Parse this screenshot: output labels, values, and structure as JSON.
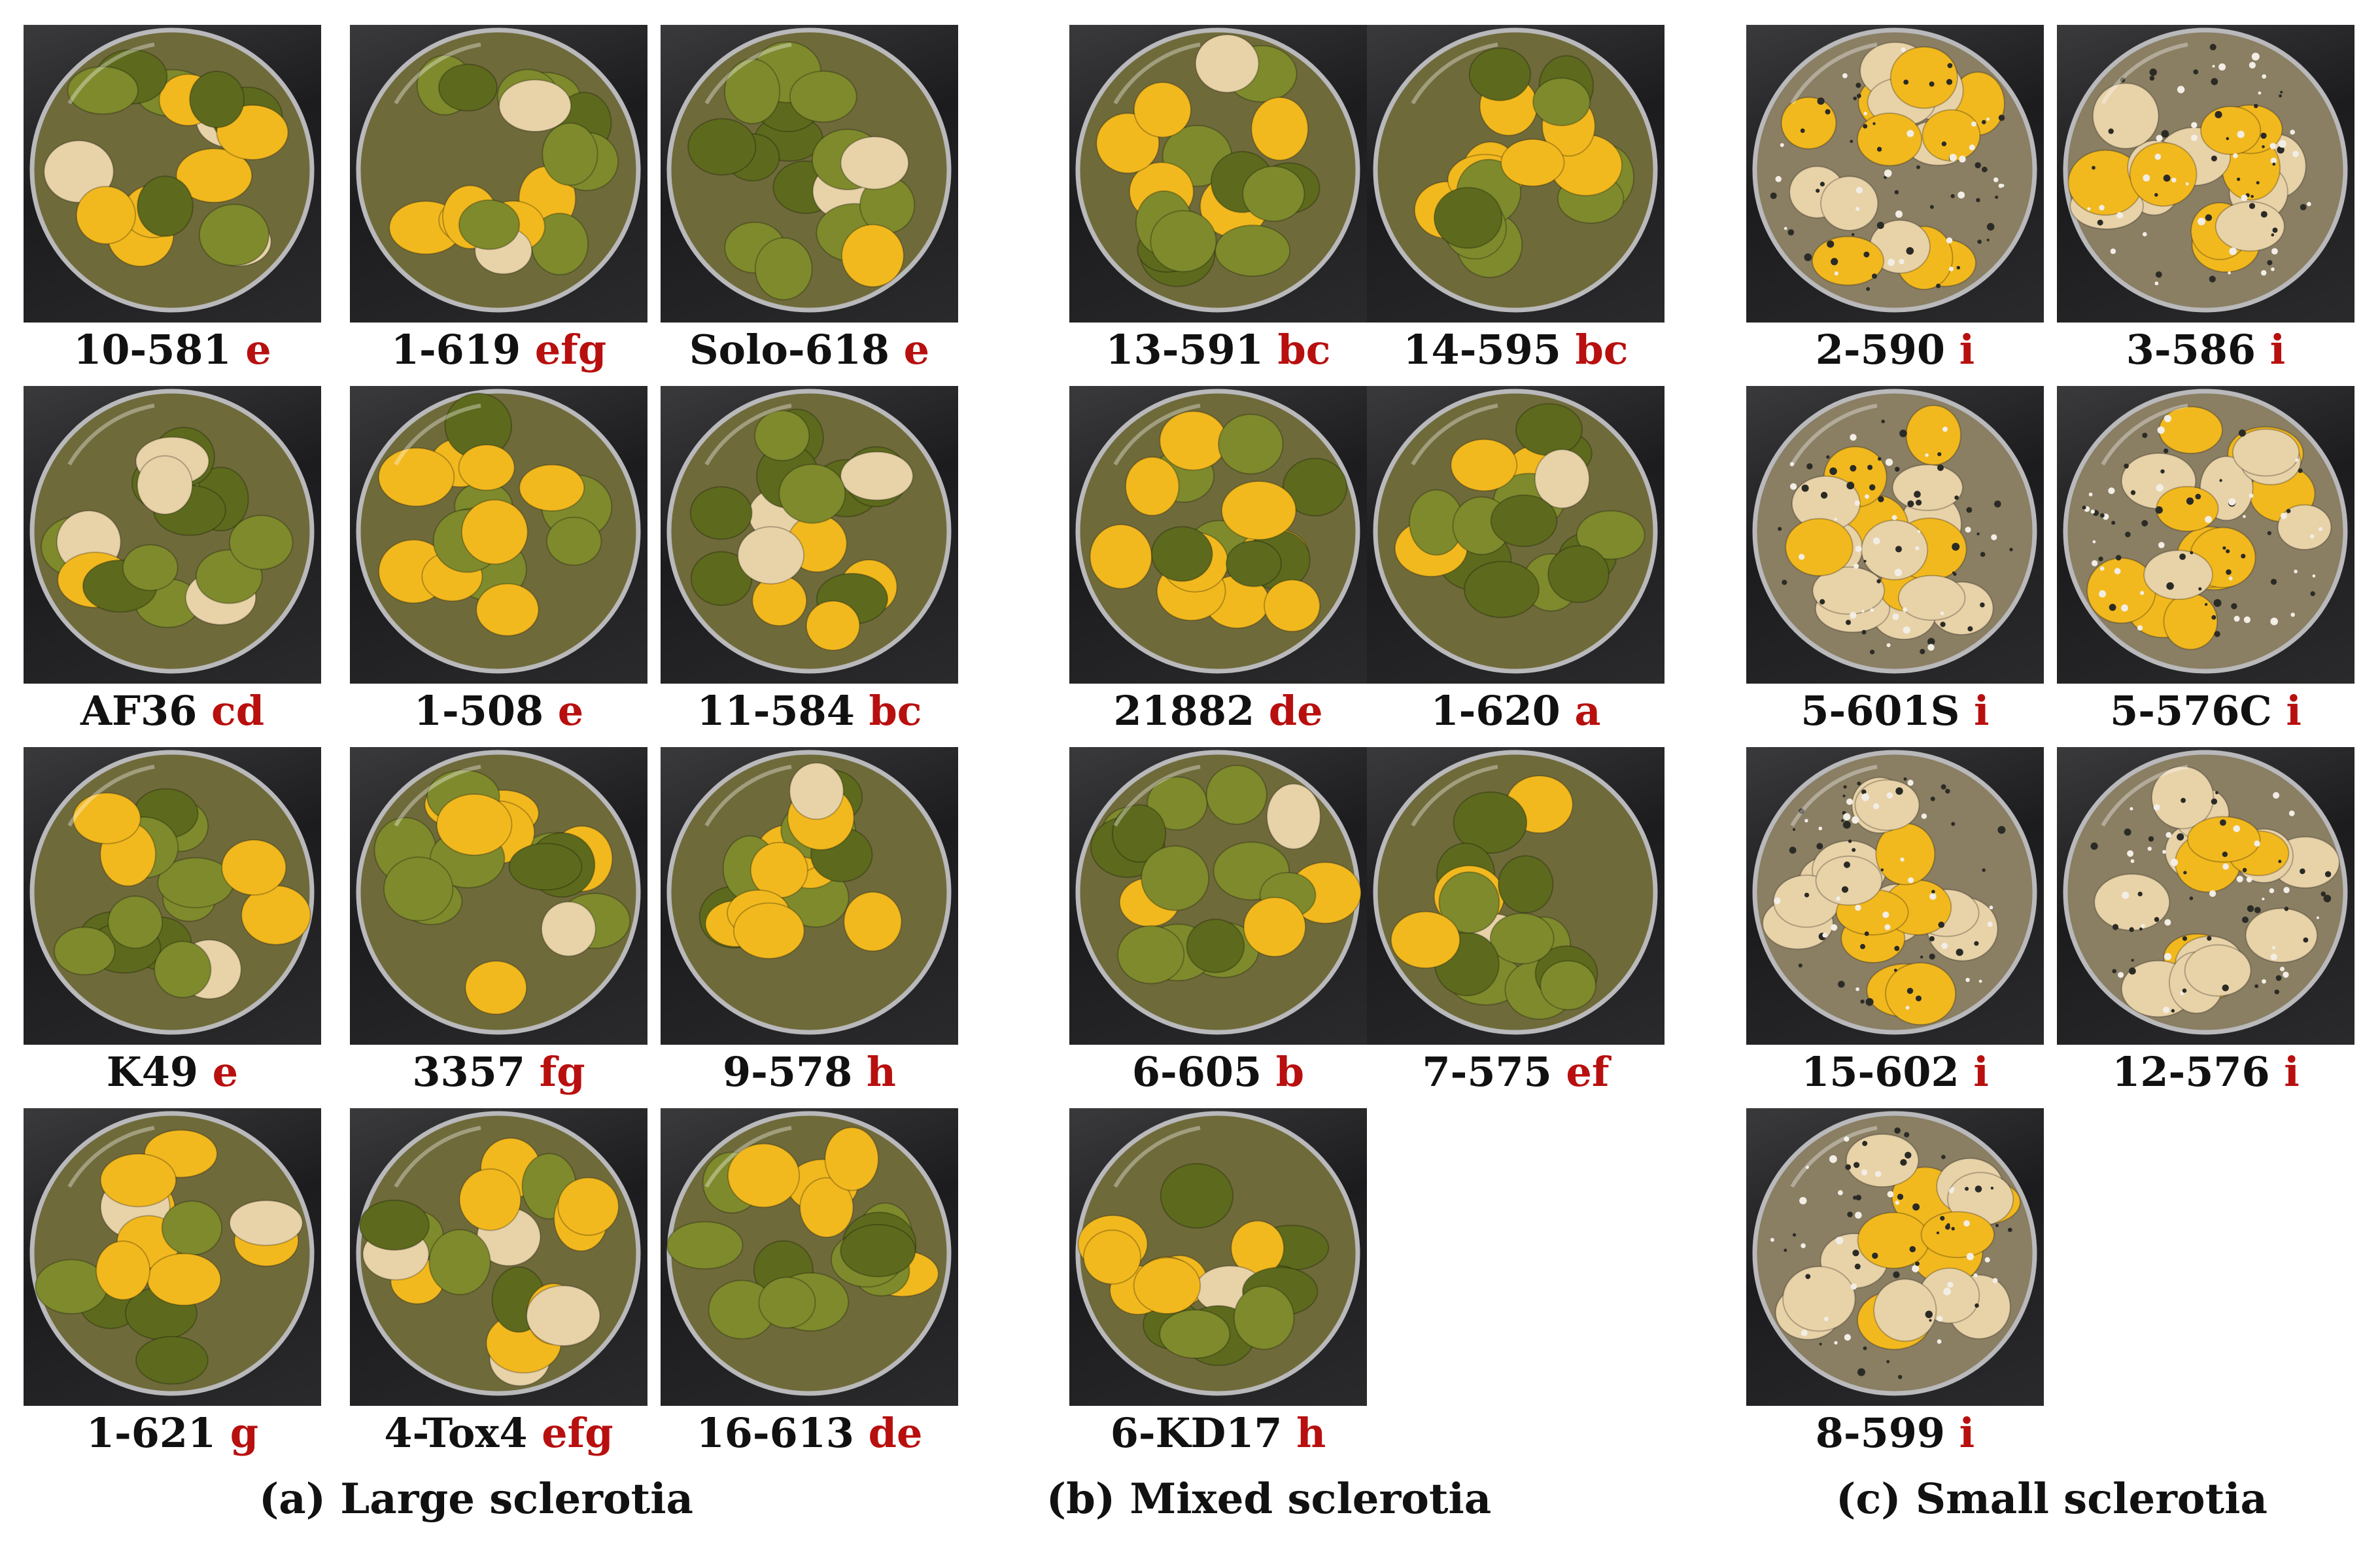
{
  "groups": [
    {
      "title": "(a) Large sclerotia",
      "plates": [
        {
          "name": "10-581",
          "grade": "e",
          "colony": "green"
        },
        {
          "name": "1-619",
          "grade": "efg",
          "colony": "green"
        },
        {
          "name": "Solo-618",
          "grade": "e",
          "colony": "green"
        },
        {
          "name": "AF36",
          "grade": "cd",
          "colony": "green"
        },
        {
          "name": "1-508",
          "grade": "e",
          "colony": "green"
        },
        {
          "name": "11-584",
          "grade": "bc",
          "colony": "green"
        },
        {
          "name": "K49",
          "grade": "e",
          "colony": "green"
        },
        {
          "name": "3357",
          "grade": "fg",
          "colony": "green"
        },
        {
          "name": "9-578",
          "grade": "h",
          "colony": "green"
        },
        {
          "name": "1-621",
          "grade": "g",
          "colony": "green"
        },
        {
          "name": "4-Tox4",
          "grade": "efg",
          "colony": "green"
        },
        {
          "name": "16-613",
          "grade": "de",
          "colony": "green"
        }
      ]
    },
    {
      "title": "(b) Mixed sclerotia",
      "plates": [
        {
          "name": "13-591",
          "grade": "bc",
          "colony": "green"
        },
        {
          "name": "14-595",
          "grade": "bc",
          "colony": "green"
        },
        {
          "name": "21882",
          "grade": "de",
          "colony": "green"
        },
        {
          "name": "1-620",
          "grade": "a",
          "colony": "green"
        },
        {
          "name": "6-605",
          "grade": "b",
          "colony": "green"
        },
        {
          "name": "7-575",
          "grade": "ef",
          "colony": "green"
        },
        {
          "name": "6-KD17",
          "grade": "h",
          "colony": "green"
        }
      ]
    },
    {
      "title": "(c) Small sclerotia",
      "plates": [
        {
          "name": "2-590",
          "grade": "i",
          "colony": "sparse"
        },
        {
          "name": "3-586",
          "grade": "i",
          "colony": "sparse"
        },
        {
          "name": "5-601S",
          "grade": "i",
          "colony": "sparse"
        },
        {
          "name": "5-576C",
          "grade": "i",
          "colony": "sparse"
        },
        {
          "name": "15-602",
          "grade": "i",
          "colony": "sparse"
        },
        {
          "name": "12-576",
          "grade": "i",
          "colony": "sparse"
        },
        {
          "name": "8-599",
          "grade": "i",
          "colony": "sparse"
        }
      ]
    }
  ],
  "colors": {
    "grade_text": "#b80f0f",
    "label_text": "#111111",
    "kernel": "#f2b91f",
    "kernel_pale": "#e8d2a8",
    "mold_green": "#7e8a2c",
    "mold_dark": "#5d6a1d",
    "plate_background": "#2a2a2c"
  }
}
